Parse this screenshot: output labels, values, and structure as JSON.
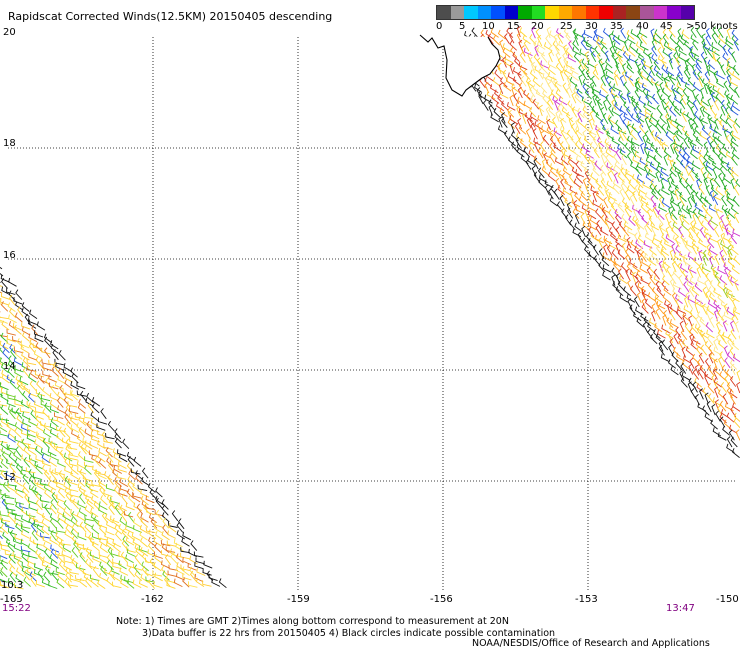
{
  "title": "Rapidscat Corrected Winds(12.5KM) 20150405 descending",
  "colorbar": {
    "colors": [
      "#4d4d4d",
      "#9a9a9a",
      "#00c8ff",
      "#0090ff",
      "#0050ff",
      "#0000cc",
      "#00aa00",
      "#22dd22",
      "#ffd700",
      "#ffaa00",
      "#ff7700",
      "#ff3300",
      "#ee0000",
      "#aa2222",
      "#8b4513",
      "#aa5599",
      "#cc33cc",
      "#8800cc",
      "#5500aa"
    ],
    "labels": [
      "0",
      "5",
      "10",
      "15",
      "20",
      "25",
      "30",
      "35",
      "40",
      "45",
      ">50 knots"
    ]
  },
  "axes": {
    "lat_labels": [
      "20",
      "18",
      "16",
      "14",
      "12",
      "10.3"
    ],
    "lon_labels": [
      "-165",
      "-162",
      "-159",
      "-156",
      "-153",
      "-150"
    ],
    "lat_range": [
      10.3,
      20
    ],
    "lon_range": [
      -165,
      -150
    ]
  },
  "times": {
    "left": "15:22",
    "right": "13:47"
  },
  "notes": {
    "line1": "Note: 1) Times are GMT 2)Times along bottom correspond to measurement at 20N",
    "line2": "3)Data buffer is 22 hrs from 20150405 4) Black circles indicate possible contamination",
    "credit": "NOAA/NESDIS/Office of Research and Applications"
  },
  "legend_icons": {
    "wind_barb": "wind-barb-icon",
    "coastline": "coastline-icon"
  }
}
